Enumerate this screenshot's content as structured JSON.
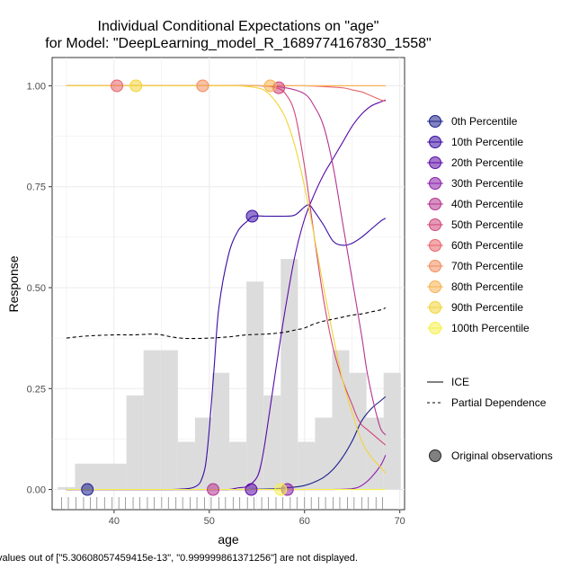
{
  "chart_data": {
    "type": "line",
    "title_lines": [
      "Individual Conditional Expectations on \"age\"",
      "for Model: \"DeepLearning_model_R_1689774167830_1558\""
    ],
    "xlabel": "age",
    "ylabel": "Response",
    "xlim": [
      33.5,
      70.5
    ],
    "ylim": [
      -0.05,
      1.07
    ],
    "x_ticks": [
      40,
      50,
      60,
      70
    ],
    "y_ticks": [
      0.0,
      0.25,
      0.5,
      0.75,
      1.0
    ],
    "y_tick_labels": [
      "0.00",
      "0.25",
      "0.50",
      "0.75",
      "1.00"
    ],
    "grid": true,
    "legend_position": "right",
    "caption": "values out of [\"5.30608057459415e-13\",  \"0.999999861371256\"] are not displayed.",
    "histogram": {
      "bin_width": 1.8,
      "bins": [
        {
          "x0": 34.1,
          "h": 0.006
        },
        {
          "x0": 35.9,
          "h": 0.064
        },
        {
          "x0": 37.7,
          "h": 0.064
        },
        {
          "x0": 39.5,
          "h": 0.064
        },
        {
          "x0": 41.3,
          "h": 0.233
        },
        {
          "x0": 43.1,
          "h": 0.345
        },
        {
          "x0": 44.9,
          "h": 0.345
        },
        {
          "x0": 46.7,
          "h": 0.118
        },
        {
          "x0": 48.5,
          "h": 0.178
        },
        {
          "x0": 50.3,
          "h": 0.289
        },
        {
          "x0": 52.1,
          "h": 0.118
        },
        {
          "x0": 53.9,
          "h": 0.515
        },
        {
          "x0": 55.7,
          "h": 0.233
        },
        {
          "x0": 57.5,
          "h": 0.571
        },
        {
          "x0": 59.3,
          "h": 0.118
        },
        {
          "x0": 61.1,
          "h": 0.178
        },
        {
          "x0": 62.9,
          "h": 0.345
        },
        {
          "x0": 64.7,
          "h": 0.289
        },
        {
          "x0": 66.5,
          "h": 0.178
        },
        {
          "x0": 68.3,
          "h": 0.289
        }
      ]
    },
    "rug_x": [
      34.5,
      35.2,
      36,
      36.8,
      37.5,
      38.2,
      39,
      39.8,
      40.5,
      41.2,
      42,
      42.7,
      43.5,
      44.2,
      45,
      45.7,
      46.5,
      47.2,
      48,
      48.7,
      49.5,
      50.2,
      51,
      51.7,
      52.5,
      53.2,
      54,
      54.7,
      55.5,
      56.2,
      57,
      57.7,
      58.5,
      59.2,
      60,
      60.7,
      61.5,
      62.2,
      63,
      63.7,
      64.5,
      65.2,
      66,
      66.7,
      67.5,
      68.2
    ],
    "series": [
      {
        "name": "0th Percentile",
        "color": "#1b1f8a",
        "x": [
          35,
          40,
          45,
          50,
          52,
          54,
          56,
          57,
          58,
          59,
          60,
          61,
          62,
          63,
          64,
          65,
          66,
          67,
          68,
          68.5
        ],
        "y": [
          0,
          0,
          0,
          0,
          0,
          0,
          0.001,
          0.002,
          0.004,
          0.006,
          0.01,
          0.018,
          0.03,
          0.05,
          0.08,
          0.12,
          0.17,
          0.2,
          0.22,
          0.23
        ],
        "marker": {
          "x": 37.2,
          "y": 0.0
        }
      },
      {
        "name": "10th Percentile",
        "color": "#3a0ca3",
        "x": [
          35,
          44,
          46,
          47,
          48,
          48.6,
          49.1,
          49.6,
          50.0,
          50.5,
          51,
          52,
          53,
          54,
          54.6,
          56,
          58,
          59,
          60,
          60.5,
          61,
          62,
          63,
          64,
          65,
          66,
          67,
          68,
          68.5
        ],
        "y": [
          0,
          0,
          0,
          0.001,
          0.003,
          0.008,
          0.02,
          0.06,
          0.15,
          0.3,
          0.45,
          0.58,
          0.64,
          0.665,
          0.677,
          0.677,
          0.677,
          0.68,
          0.7,
          0.705,
          0.69,
          0.655,
          0.615,
          0.605,
          0.61,
          0.625,
          0.645,
          0.665,
          0.672
        ],
        "marker": {
          "x": 54.5,
          "y": 0.677
        }
      },
      {
        "name": "20th Percentile",
        "color": "#5b0aa6",
        "x": [
          35,
          50,
          52,
          53,
          54,
          55,
          55.5,
          56,
          57,
          58,
          59,
          60,
          61,
          62,
          63,
          64,
          65,
          66,
          67,
          68,
          68.5
        ],
        "y": [
          0,
          0,
          0,
          0.004,
          0.008,
          0.03,
          0.07,
          0.14,
          0.3,
          0.45,
          0.58,
          0.67,
          0.73,
          0.78,
          0.82,
          0.86,
          0.9,
          0.93,
          0.95,
          0.96,
          0.965
        ],
        "marker": {
          "x": 54.4,
          "y": 0.0
        }
      },
      {
        "name": "30th Percentile",
        "color": "#8a1faa",
        "x": [
          35,
          55,
          60,
          63,
          65,
          66,
          67,
          68,
          68.5
        ],
        "y": [
          0,
          0,
          0.0,
          0.0,
          0.002,
          0.01,
          0.03,
          0.06,
          0.085
        ],
        "marker": {
          "x": 58.2,
          "y": 0.0
        }
      },
      {
        "name": "40th Percentile",
        "color": "#b5348f",
        "x": [
          35,
          40,
          45,
          50,
          55,
          58,
          60,
          61,
          62,
          63,
          64,
          65,
          66,
          66.5,
          67,
          67.5,
          68,
          68.5
        ],
        "y": [
          1,
          1,
          1,
          1,
          1,
          0.995,
          0.98,
          0.95,
          0.9,
          0.8,
          0.66,
          0.52,
          0.38,
          0.3,
          0.24,
          0.19,
          0.15,
          0.135
        ],
        "marker": {
          "x": 50.4,
          "y": 0.0
        }
      },
      {
        "name": "50th Percentile",
        "color": "#d1457a",
        "x": [
          35,
          40,
          45,
          50,
          55,
          57,
          58,
          59,
          60,
          61,
          62,
          63,
          64,
          65,
          65.5,
          66,
          66.5,
          67,
          67.5,
          68,
          68.5
        ],
        "y": [
          1,
          1,
          1,
          1,
          1,
          0.995,
          0.98,
          0.93,
          0.8,
          0.63,
          0.47,
          0.35,
          0.27,
          0.21,
          0.18,
          0.16,
          0.15,
          0.14,
          0.13,
          0.12,
          0.11
        ],
        "marker": {
          "x": 57.3,
          "y": 0.995
        }
      },
      {
        "name": "60th Percentile",
        "color": "#e8646a",
        "x": [
          35,
          40,
          45,
          50,
          55,
          60,
          62,
          64,
          65,
          66,
          66.5,
          67,
          67.5,
          68,
          68.5
        ],
        "y": [
          1,
          1,
          1,
          1,
          1,
          1,
          0.998,
          0.995,
          0.99,
          0.985,
          0.98,
          0.975,
          0.97,
          0.965,
          0.962
        ],
        "marker": {
          "x": 40.3,
          "y": 1.0
        }
      },
      {
        "name": "70th Percentile",
        "color": "#f28d5f",
        "x": [
          35,
          40,
          45,
          50,
          55,
          60,
          65,
          68.5
        ],
        "y": [
          1,
          1,
          1,
          1,
          1,
          1,
          1,
          1
        ],
        "marker": {
          "x": 49.3,
          "y": 1.0
        }
      },
      {
        "name": "80th Percentile",
        "color": "#f7b251",
        "x": [
          35,
          40,
          45,
          50,
          55,
          60,
          65,
          68.5
        ],
        "y": [
          1,
          1,
          1,
          1,
          1,
          1,
          1,
          1
        ],
        "marker": {
          "x": 56.4,
          "y": 1.0
        }
      },
      {
        "name": "90th Percentile",
        "color": "#f2d43a",
        "x": [
          35,
          45,
          50,
          53,
          55,
          56,
          57,
          58,
          59,
          60,
          61,
          62,
          63,
          64,
          65,
          66,
          67,
          68,
          68.5
        ],
        "y": [
          1,
          1,
          1,
          1,
          0.995,
          0.985,
          0.96,
          0.92,
          0.85,
          0.75,
          0.63,
          0.5,
          0.38,
          0.27,
          0.19,
          0.12,
          0.08,
          0.055,
          0.04
        ],
        "marker": {
          "x": 42.3,
          "y": 1.0
        }
      },
      {
        "name": "100th Percentile",
        "color": "#f5f04a",
        "x": [
          35,
          50,
          55,
          60,
          65,
          68.5
        ],
        "y": [
          0,
          0,
          0,
          0,
          0,
          0
        ],
        "marker": {
          "x": 57.5,
          "y": 0.0
        }
      }
    ],
    "pdp": {
      "name": "Partial Dependence",
      "x": [
        35,
        37,
        40,
        42,
        44,
        45,
        46,
        47,
        48,
        50,
        52,
        54,
        56,
        57,
        58,
        59,
        60,
        61,
        62,
        63,
        64,
        65,
        66,
        67,
        68,
        68.5
      ],
      "y": [
        0.375,
        0.38,
        0.383,
        0.383,
        0.385,
        0.383,
        0.378,
        0.375,
        0.374,
        0.375,
        0.378,
        0.383,
        0.385,
        0.387,
        0.39,
        0.395,
        0.4,
        0.41,
        0.417,
        0.422,
        0.427,
        0.432,
        0.435,
        0.44,
        0.445,
        0.45
      ]
    },
    "legend": {
      "percentile_entries": [
        "0th Percentile",
        "10th Percentile",
        "20th Percentile",
        "30th Percentile",
        "40th Percentile",
        "50th Percentile",
        "60th Percentile",
        "70th Percentile",
        "80th Percentile",
        "90th Percentile",
        "100th Percentile"
      ],
      "line_entries": [
        "ICE",
        "Partial Dependence"
      ],
      "point_entry": "Original observations"
    }
  }
}
